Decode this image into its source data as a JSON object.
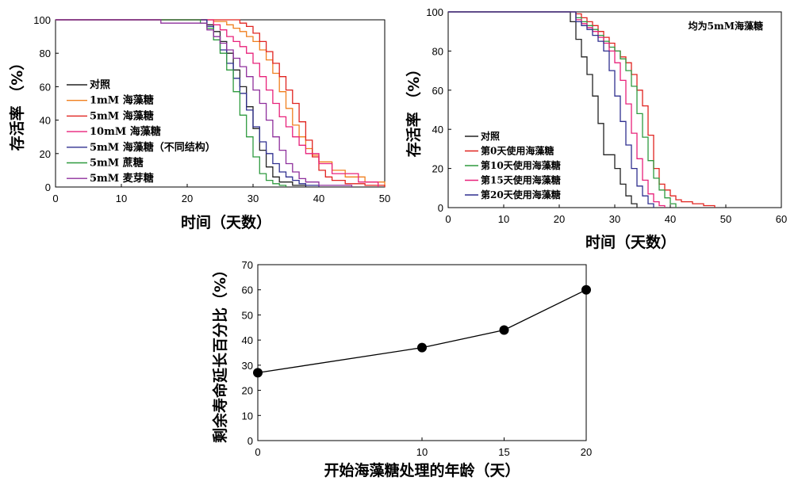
{
  "chart_data": [
    {
      "type": "line",
      "step": true,
      "xlabel": "时间（天数）",
      "ylabel": "存活率 （%）",
      "xlim": [
        0,
        50
      ],
      "ylim": [
        0,
        100
      ],
      "xticks": [
        0,
        10,
        20,
        30,
        40,
        50
      ],
      "yticks": [
        0,
        20,
        40,
        60,
        80,
        100
      ],
      "grid": false,
      "legend_position": "left",
      "series": [
        {
          "name": "对照",
          "color": "#222222",
          "x": [
            0,
            22,
            23,
            24,
            25,
            26,
            27,
            28,
            29,
            30,
            31,
            32,
            33,
            34,
            36,
            38
          ],
          "y": [
            100,
            100,
            97,
            93,
            87,
            80,
            70,
            60,
            48,
            35,
            22,
            12,
            6,
            3,
            1,
            0
          ]
        },
        {
          "name": "1mM 海藻糖",
          "color": "#f07f1e",
          "x": [
            0,
            20,
            24,
            26,
            27,
            28,
            29,
            30,
            31,
            32,
            33,
            34,
            35,
            36,
            37,
            38,
            39,
            40,
            42,
            44,
            47,
            50
          ],
          "y": [
            100,
            100,
            99,
            97,
            95,
            93,
            90,
            87,
            82,
            76,
            68,
            57,
            47,
            37,
            30,
            23,
            19,
            15,
            10,
            6,
            3,
            0
          ]
        },
        {
          "name": "5mM 海藻糖",
          "color": "#e0231f",
          "x": [
            0,
            25,
            28,
            29,
            30,
            31,
            32,
            33,
            34,
            35,
            36,
            37,
            38,
            39,
            40,
            41,
            42,
            44,
            47,
            50
          ],
          "y": [
            100,
            100,
            98,
            96,
            92,
            87,
            81,
            74,
            66,
            58,
            50,
            39,
            28,
            18,
            10,
            6,
            4,
            2,
            1,
            0
          ]
        },
        {
          "name": "10mM 海藻糖",
          "color": "#e8217a",
          "x": [
            0,
            16,
            24,
            25,
            26,
            27,
            28,
            29,
            30,
            31,
            32,
            33,
            34,
            35,
            36,
            37,
            38,
            40,
            42,
            46,
            49
          ],
          "y": [
            100,
            100,
            97,
            94,
            90,
            87,
            84,
            80,
            74,
            66,
            58,
            50,
            42,
            36,
            30,
            25,
            20,
            14,
            8,
            3,
            0
          ]
        },
        {
          "name": "5mM 海藻糖（不同结构）",
          "color": "#2f2f8f",
          "x": [
            0,
            22,
            23,
            24,
            25,
            26,
            27,
            28,
            29,
            30,
            31,
            32,
            33,
            34,
            35,
            36,
            37,
            38,
            40
          ],
          "y": [
            100,
            100,
            96,
            90,
            82,
            74,
            65,
            56,
            46,
            36,
            27,
            20,
            14,
            9,
            6,
            4,
            2,
            1,
            0
          ]
        },
        {
          "name": "5mM 蔗糖",
          "color": "#2e9a3f",
          "x": [
            0,
            21,
            22,
            23,
            24,
            25,
            26,
            27,
            28,
            29,
            30,
            31,
            32,
            33,
            34,
            35
          ],
          "y": [
            100,
            100,
            98,
            95,
            88,
            80,
            70,
            57,
            43,
            30,
            18,
            8,
            4,
            2,
            1,
            0
          ]
        },
        {
          "name": "5mM 麦芽糖",
          "color": "#8e2f9c",
          "x": [
            0,
            16,
            22,
            23,
            24,
            25,
            26,
            27,
            28,
            29,
            30,
            31,
            32,
            33,
            34,
            35,
            36,
            37,
            38,
            40,
            45
          ],
          "y": [
            100,
            98,
            98,
            94,
            90,
            86,
            82,
            77,
            72,
            66,
            58,
            50,
            40,
            30,
            22,
            14,
            9,
            5,
            3,
            1,
            0
          ]
        }
      ]
    },
    {
      "type": "line",
      "step": true,
      "title": "均为5mM海藻糖",
      "xlabel": "时间（天数）",
      "ylabel": "存活率 （%）",
      "xlim": [
        0,
        60
      ],
      "ylim": [
        0,
        100
      ],
      "xticks": [
        0,
        10,
        20,
        30,
        40,
        50,
        60
      ],
      "yticks": [
        0,
        20,
        40,
        60,
        80,
        100
      ],
      "grid": false,
      "legend_position": "bottom-left",
      "series": [
        {
          "name": "对照",
          "color": "#222222",
          "x": [
            0,
            21,
            22,
            23,
            24,
            25,
            26,
            27,
            28,
            29,
            30,
            31,
            32,
            33,
            34
          ],
          "y": [
            100,
            100,
            95,
            86,
            77,
            68,
            57,
            43,
            27,
            27,
            20,
            12,
            6,
            2,
            0
          ]
        },
        {
          "name": "第0天使用海藻糖",
          "color": "#e0231f",
          "x": [
            0,
            22,
            23,
            24,
            25,
            26,
            27,
            28,
            29,
            30,
            31,
            32,
            33,
            34,
            35,
            36,
            37,
            38,
            39,
            40,
            41,
            42,
            44,
            46,
            48
          ],
          "y": [
            100,
            100,
            99,
            97,
            95,
            93,
            90,
            87,
            84,
            80,
            77,
            74,
            68,
            60,
            52,
            37,
            20,
            12,
            9,
            6,
            4,
            3,
            2,
            1,
            0
          ]
        },
        {
          "name": "第10天使用海藻糖",
          "color": "#2e9a3f",
          "x": [
            0,
            21,
            23,
            24,
            25,
            26,
            27,
            28,
            29,
            30,
            31,
            32,
            33,
            34,
            35,
            36,
            37,
            38,
            39,
            40,
            41
          ],
          "y": [
            100,
            100,
            97,
            95,
            93,
            91,
            88,
            85,
            82,
            80,
            76,
            70,
            62,
            48,
            36,
            24,
            15,
            9,
            5,
            2,
            0
          ]
        },
        {
          "name": "第15天使用海藻糖",
          "color": "#e8217a",
          "x": [
            0,
            21,
            23,
            24,
            25,
            26,
            27,
            28,
            29,
            30,
            31,
            32,
            33,
            34,
            35,
            36,
            37,
            38,
            39
          ],
          "y": [
            100,
            100,
            96,
            94,
            92,
            90,
            87,
            84,
            80,
            74,
            65,
            53,
            38,
            25,
            14,
            7,
            3,
            1,
            0
          ]
        },
        {
          "name": "第20天使用海藻糖",
          "color": "#2f2f8f",
          "x": [
            0,
            22,
            23,
            24,
            25,
            26,
            27,
            28,
            29,
            30,
            31,
            32,
            33,
            34,
            35,
            36,
            37
          ],
          "y": [
            100,
            100,
            95,
            93,
            91,
            88,
            85,
            80,
            70,
            57,
            44,
            32,
            20,
            11,
            6,
            2,
            0
          ]
        }
      ]
    },
    {
      "type": "line",
      "markers": true,
      "xlabel": "开始海藻糖处理的年龄（天）",
      "ylabel": "剩余寿命延长百分比（%）",
      "xlim": [
        0,
        20
      ],
      "ylim": [
        0,
        70
      ],
      "xticks": [
        0,
        10,
        15,
        20
      ],
      "yticks": [
        0,
        10,
        20,
        30,
        40,
        50,
        60,
        70
      ],
      "grid": false,
      "series": [
        {
          "color": "#000000",
          "x": [
            0,
            10,
            15,
            20
          ],
          "y": [
            27,
            37,
            44,
            60
          ]
        }
      ]
    }
  ]
}
